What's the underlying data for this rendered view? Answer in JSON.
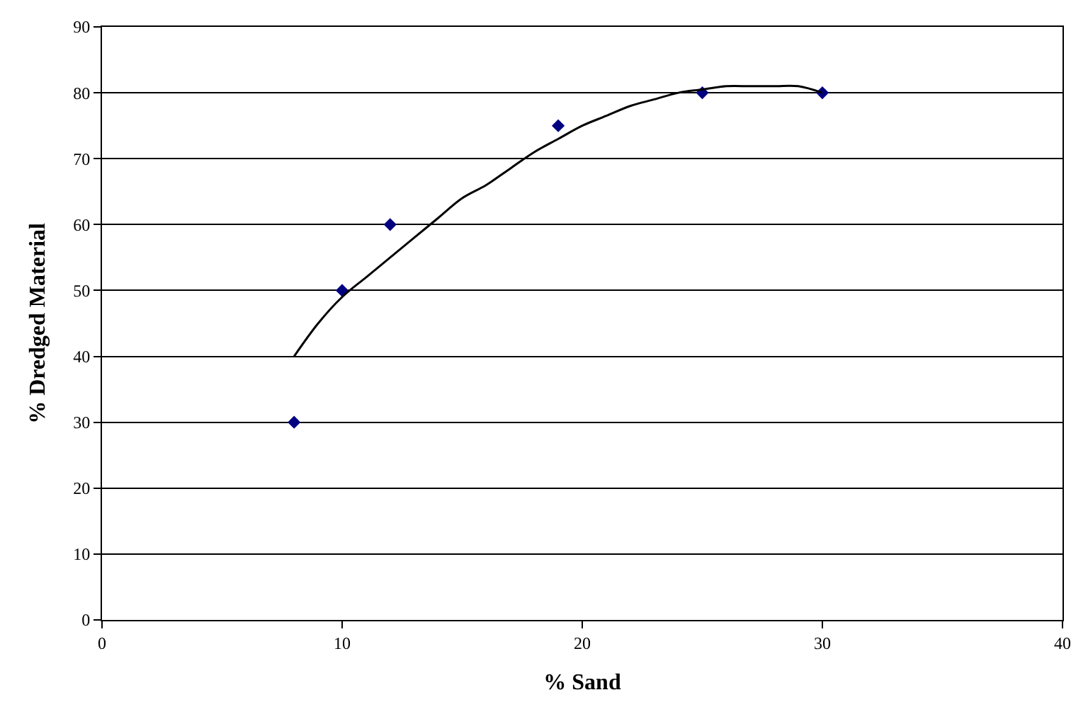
{
  "chart_data": {
    "type": "scatter",
    "xlabel": "% Sand",
    "ylabel": "% Dredged Material",
    "x": [
      8,
      10,
      12,
      19,
      25,
      30
    ],
    "series": [
      {
        "color": "#000080",
        "marker": "diamond",
        "values": [
          30,
          50,
          60,
          75,
          80,
          80
        ]
      },
      {
        "type": "line",
        "color": "#000000",
        "marker": "none",
        "x": [
          8,
          9,
          10,
          11,
          12,
          13,
          14,
          15,
          16,
          17,
          18,
          19,
          20,
          21,
          22,
          23,
          24,
          25,
          26,
          27,
          28,
          29,
          30
        ],
        "values": [
          40,
          45,
          49,
          52,
          55,
          58,
          61,
          64,
          66,
          68.5,
          71,
          73,
          75,
          76.5,
          78,
          79,
          80,
          80.5,
          81,
          81,
          81,
          81,
          80
        ]
      }
    ],
    "xlim": [
      0,
      40
    ],
    "xticks": [
      0,
      10,
      20,
      30,
      40
    ],
    "ylim": [
      0,
      90
    ],
    "yticks": [
      0,
      10,
      20,
      30,
      40,
      50,
      60,
      70,
      80,
      90
    ],
    "grid": "y"
  }
}
